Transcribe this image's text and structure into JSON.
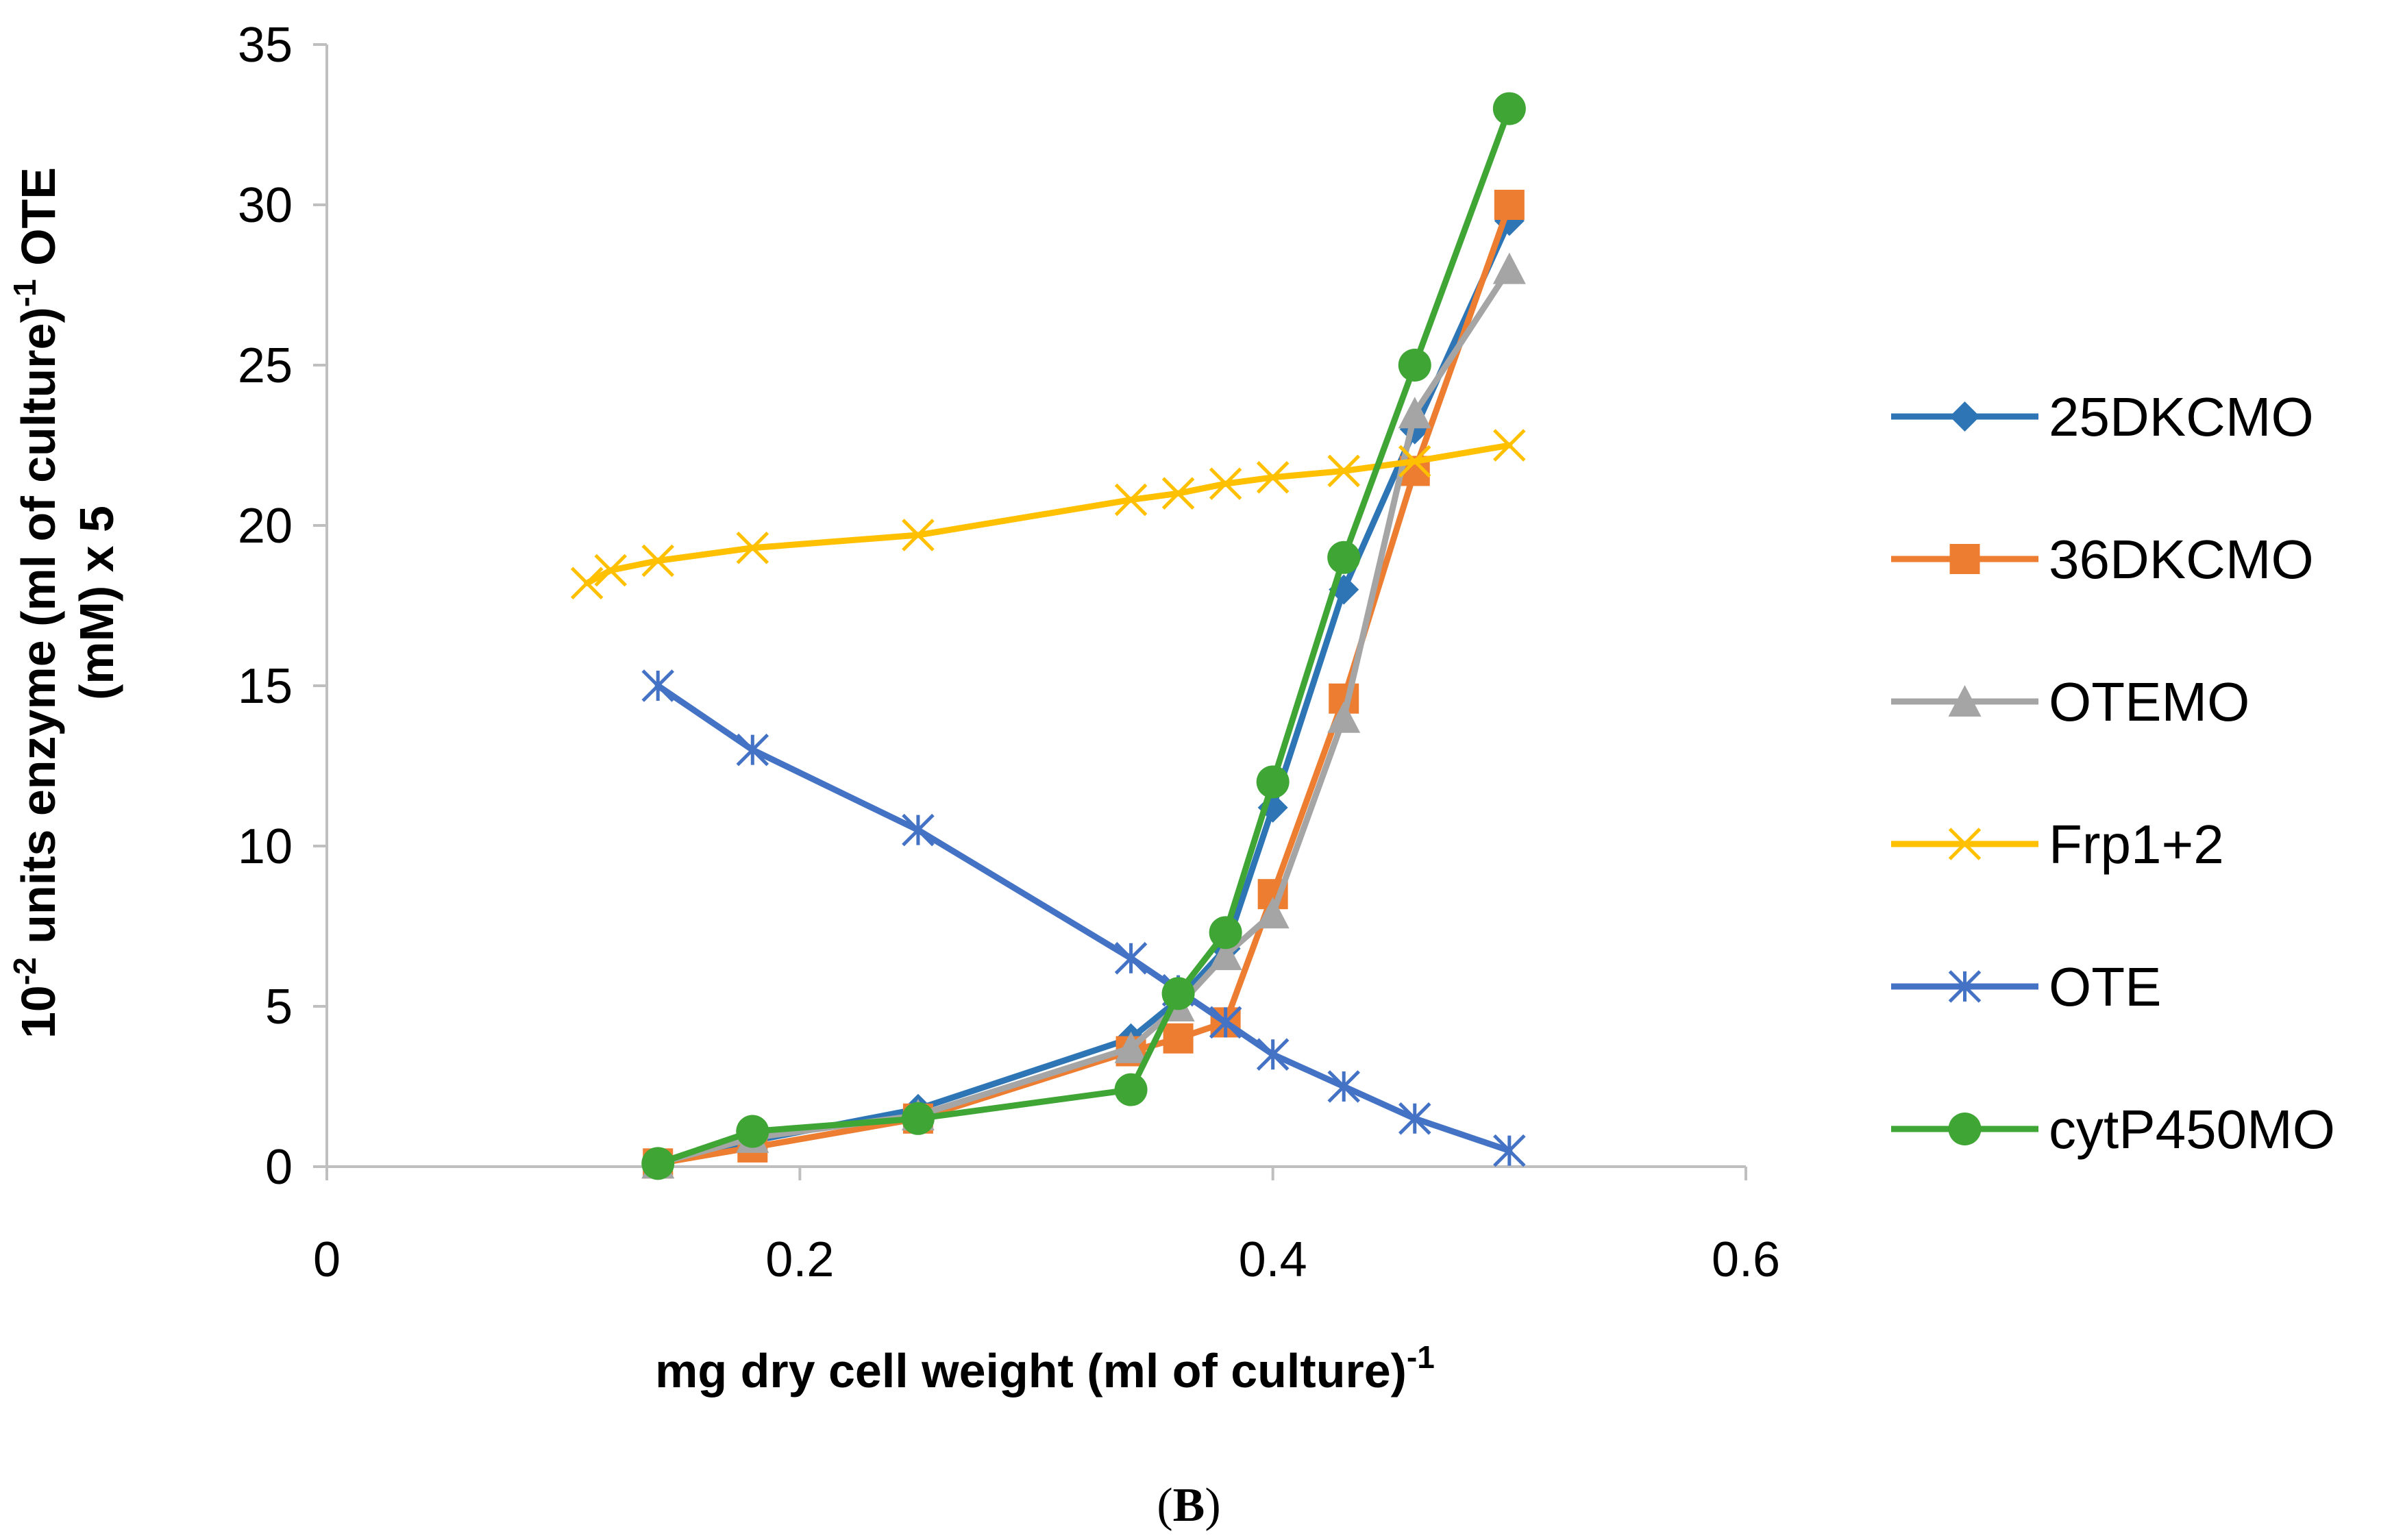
{
  "chart_data": {
    "type": "line",
    "title": "",
    "caption": {
      "open": "(",
      "letter": "B",
      "close": ")"
    },
    "xlabel": {
      "main": "mg dry cell weight (ml of culture)",
      "sup": "-1"
    },
    "ylabel": {
      "line1_prefix": "10",
      "line1_sup1": "-2",
      "line1_mid": " units enzyme (ml of culture)",
      "line1_sup2": "-1",
      "line1_suffix": " OTE",
      "line2": "(mM) x 5"
    },
    "xlim": [
      0,
      0.6
    ],
    "ylim": [
      0,
      35
    ],
    "xticks": [
      {
        "value": 0,
        "label": "0"
      },
      {
        "value": 0.2,
        "label": "0.2"
      },
      {
        "value": 0.4,
        "label": "0.4"
      },
      {
        "value": 0.6,
        "label": "0.6"
      }
    ],
    "yticks": [
      {
        "value": 0,
        "label": "0"
      },
      {
        "value": 5,
        "label": "5"
      },
      {
        "value": 10,
        "label": "10"
      },
      {
        "value": 15,
        "label": "15"
      },
      {
        "value": 20,
        "label": "20"
      },
      {
        "value": 25,
        "label": "25"
      },
      {
        "value": 30,
        "label": "30"
      },
      {
        "value": 35,
        "label": "35"
      }
    ],
    "grid": false,
    "legend_position": "right",
    "series": [
      {
        "name": "25DKCMO",
        "color": "#2E75B6",
        "marker": "diamond",
        "x": [
          0.14,
          0.18,
          0.25,
          0.34,
          0.36,
          0.38,
          0.4,
          0.43,
          0.46,
          0.5
        ],
        "y": [
          0.1,
          0.8,
          1.8,
          4.0,
          5.2,
          6.8,
          11.2,
          18.0,
          23.0,
          29.5
        ]
      },
      {
        "name": "36DKCMO",
        "color": "#ED7D31",
        "marker": "square",
        "x": [
          0.14,
          0.18,
          0.25,
          0.34,
          0.36,
          0.38,
          0.4,
          0.43,
          0.46,
          0.5
        ],
        "y": [
          0.1,
          0.6,
          1.5,
          3.6,
          4.0,
          4.5,
          8.5,
          14.6,
          21.7,
          30.0
        ]
      },
      {
        "name": "OTEMO",
        "color": "#A5A5A5",
        "marker": "triangle",
        "x": [
          0.14,
          0.18,
          0.25,
          0.34,
          0.36,
          0.38,
          0.4,
          0.43,
          0.46,
          0.5
        ],
        "y": [
          0.1,
          0.9,
          1.6,
          3.7,
          5.0,
          6.6,
          7.9,
          14.0,
          23.5,
          28.0
        ]
      },
      {
        "name": "Frp1+2",
        "color": "#FFC000",
        "marker": "x",
        "x": [
          0.11,
          0.12,
          0.14,
          0.18,
          0.25,
          0.34,
          0.36,
          0.38,
          0.4,
          0.43,
          0.46,
          0.5
        ],
        "y": [
          18.2,
          18.6,
          18.9,
          19.3,
          19.7,
          20.8,
          21.0,
          21.3,
          21.5,
          21.7,
          22.0,
          22.5
        ]
      },
      {
        "name": "OTE",
        "color": "#4472C4",
        "marker": "asterisk",
        "x": [
          0.14,
          0.18,
          0.25,
          0.34,
          0.36,
          0.38,
          0.4,
          0.43,
          0.46,
          0.5
        ],
        "y": [
          15.0,
          13.0,
          10.5,
          6.5,
          5.5,
          4.5,
          3.5,
          2.5,
          1.5,
          0.5
        ]
      },
      {
        "name": "cytP450MO",
        "color": "#3FA535",
        "marker": "circle",
        "x": [
          0.14,
          0.18,
          0.25,
          0.34,
          0.36,
          0.38,
          0.4,
          0.43,
          0.46,
          0.5
        ],
        "y": [
          0.1,
          1.1,
          1.5,
          2.4,
          5.4,
          7.3,
          12.0,
          19.0,
          25.0,
          33.0
        ]
      }
    ]
  }
}
